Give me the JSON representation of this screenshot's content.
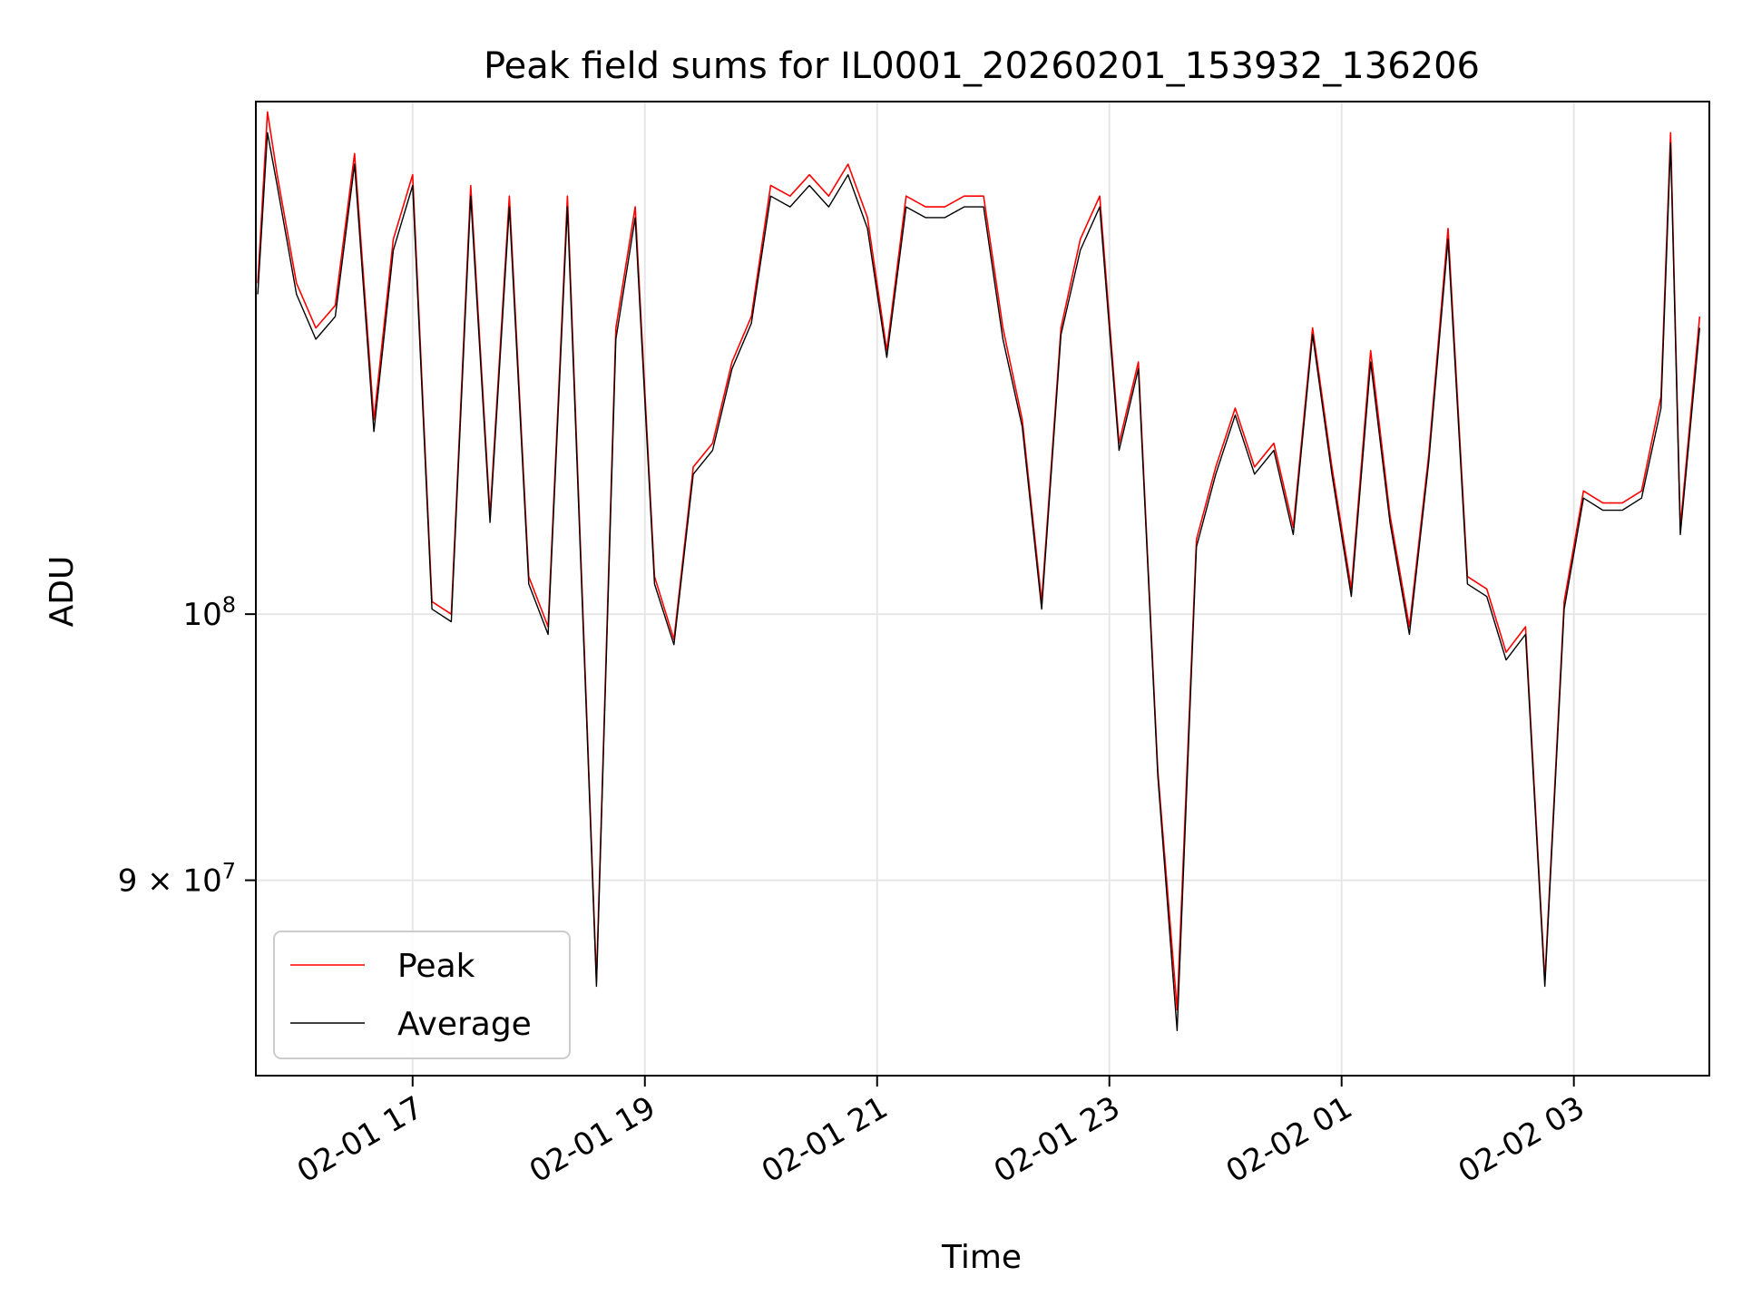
{
  "chart_data": {
    "type": "line",
    "title": "Peak field sums for IL0001_20260201_153932_136206",
    "xlabel": "Time",
    "ylabel": "ADU",
    "x_scale": "time",
    "y_scale": "log",
    "xlim": [
      "2026-02-01 15:39",
      "2026-02-02 04:10"
    ],
    "ylim": [
      83300000,
      122500000
    ],
    "grid": true,
    "legend_position": "lower-left",
    "x_ticks": [
      {
        "value": "2026-02-01 17:00",
        "label": "02-01 17"
      },
      {
        "value": "2026-02-01 19:00",
        "label": "02-01 19"
      },
      {
        "value": "2026-02-01 21:00",
        "label": "02-01 21"
      },
      {
        "value": "2026-02-01 23:00",
        "label": "02-01 23"
      },
      {
        "value": "2026-02-02 01:00",
        "label": "02-02 01"
      },
      {
        "value": "2026-02-02 03:00",
        "label": "02-02 03"
      }
    ],
    "y_ticks": [
      {
        "value": 90000000,
        "label": "9 × 10",
        "exp": "7"
      },
      {
        "value": 100000000,
        "label": "10",
        "exp": "8"
      }
    ],
    "x": [
      "2026-02-01 15:40",
      "2026-02-01 15:45",
      "2026-02-01 15:50",
      "2026-02-01 16:00",
      "2026-02-01 16:10",
      "2026-02-01 16:20",
      "2026-02-01 16:30",
      "2026-02-01 16:40",
      "2026-02-01 16:50",
      "2026-02-01 17:00",
      "2026-02-01 17:10",
      "2026-02-01 17:20",
      "2026-02-01 17:30",
      "2026-02-01 17:40",
      "2026-02-01 17:50",
      "2026-02-01 18:00",
      "2026-02-01 18:10",
      "2026-02-01 18:20",
      "2026-02-01 18:30",
      "2026-02-01 18:35",
      "2026-02-01 18:45",
      "2026-02-01 18:55",
      "2026-02-01 19:05",
      "2026-02-01 19:15",
      "2026-02-01 19:25",
      "2026-02-01 19:35",
      "2026-02-01 19:45",
      "2026-02-01 19:55",
      "2026-02-01 20:05",
      "2026-02-01 20:15",
      "2026-02-01 20:25",
      "2026-02-01 20:35",
      "2026-02-01 20:45",
      "2026-02-01 20:55",
      "2026-02-01 21:05",
      "2026-02-01 21:15",
      "2026-02-01 21:25",
      "2026-02-01 21:35",
      "2026-02-01 21:45",
      "2026-02-01 21:55",
      "2026-02-01 22:05",
      "2026-02-01 22:15",
      "2026-02-01 22:25",
      "2026-02-01 22:35",
      "2026-02-01 22:45",
      "2026-02-01 22:55",
      "2026-02-01 23:05",
      "2026-02-01 23:15",
      "2026-02-01 23:25",
      "2026-02-01 23:35",
      "2026-02-01 23:45",
      "2026-02-01 23:55",
      "2026-02-02 00:05",
      "2026-02-02 00:15",
      "2026-02-02 00:25",
      "2026-02-02 00:35",
      "2026-02-02 00:45",
      "2026-02-02 00:55",
      "2026-02-02 01:05",
      "2026-02-02 01:15",
      "2026-02-02 01:25",
      "2026-02-02 01:35",
      "2026-02-02 01:45",
      "2026-02-02 01:55",
      "2026-02-02 02:05",
      "2026-02-02 02:15",
      "2026-02-02 02:25",
      "2026-02-02 02:35",
      "2026-02-02 02:45",
      "2026-02-02 02:55",
      "2026-02-02 03:05",
      "2026-02-02 03:15",
      "2026-02-02 03:25",
      "2026-02-02 03:35",
      "2026-02-02 03:45",
      "2026-02-02 03:50",
      "2026-02-02 03:55",
      "2026-02-02 04:05"
    ],
    "series": [
      {
        "name": "Peak",
        "color": "#ff0000",
        "values": [
          114000000,
          122000000,
          119000000,
          114000000,
          112000000,
          113000000,
          120000000,
          108000000,
          116000000,
          119000000,
          100500000,
          100000000,
          118500000,
          104000000,
          118000000,
          101500000,
          99500000,
          118000000,
          96000000,
          86500000,
          112000000,
          117500000,
          101500000,
          99000000,
          106000000,
          107000000,
          110500000,
          112500000,
          118500000,
          118000000,
          119000000,
          118000000,
          119500000,
          117000000,
          111000000,
          118000000,
          117500000,
          117500000,
          118000000,
          118000000,
          112000000,
          108000000,
          100500000,
          112000000,
          116000000,
          118000000,
          107000000,
          110500000,
          94000000,
          85500000,
          103000000,
          106000000,
          108500000,
          106000000,
          107000000,
          103500000,
          112000000,
          106000000,
          101000000,
          111000000,
          104000000,
          99500000,
          106500000,
          116500000,
          101500000,
          101000000,
          98500000,
          99500000,
          86500000,
          100500000,
          105000000,
          104500000,
          104500000,
          105000000,
          109000000,
          121000000,
          103500000,
          112500000
        ]
      },
      {
        "name": "Average",
        "color": "#000000",
        "values": [
          113500000,
          121000000,
          118500000,
          113500000,
          111500000,
          112500000,
          119500000,
          107500000,
          115500000,
          118500000,
          100200000,
          99700000,
          118000000,
          103700000,
          117500000,
          101200000,
          99200000,
          117500000,
          95700000,
          86300000,
          111500000,
          117000000,
          101200000,
          98800000,
          105700000,
          106700000,
          110200000,
          112200000,
          118000000,
          117500000,
          118500000,
          117500000,
          119000000,
          116500000,
          110700000,
          117500000,
          117000000,
          117000000,
          117500000,
          117500000,
          111500000,
          107700000,
          100200000,
          111700000,
          115500000,
          117500000,
          106700000,
          110200000,
          93800000,
          84800000,
          102700000,
          105700000,
          108200000,
          105700000,
          106700000,
          103200000,
          111700000,
          105700000,
          100700000,
          110500000,
          103700000,
          99200000,
          106200000,
          116000000,
          101200000,
          100700000,
          98200000,
          99200000,
          86300000,
          100200000,
          104700000,
          104200000,
          104200000,
          104700000,
          108500000,
          120500000,
          103200000,
          112000000
        ]
      }
    ]
  }
}
